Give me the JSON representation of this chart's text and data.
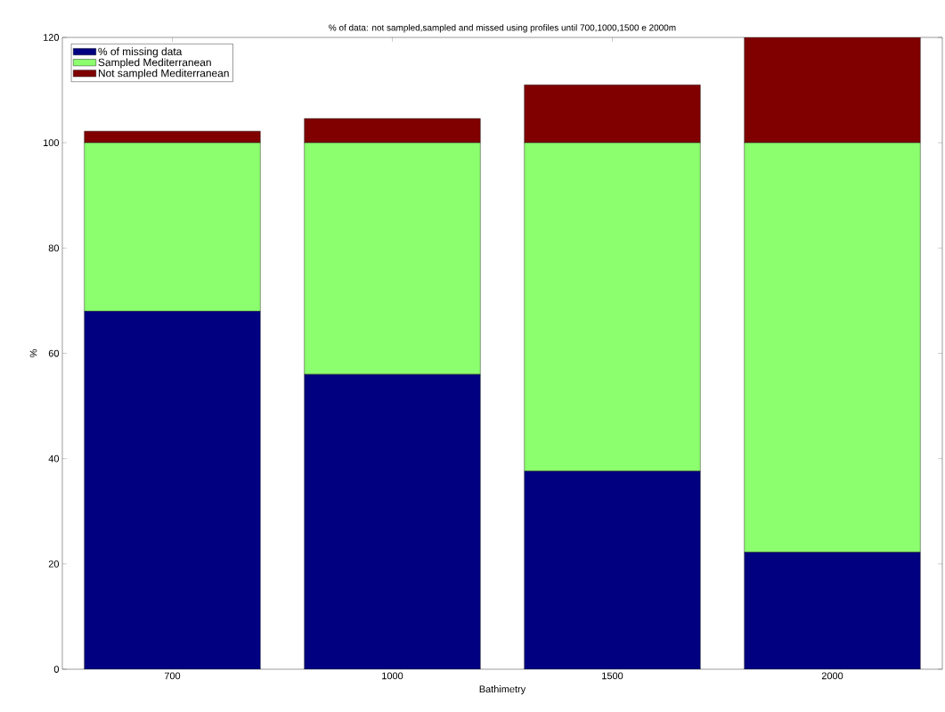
{
  "chart_data": {
    "type": "bar",
    "stacked": true,
    "title": "% of data: not sampled,sampled and missed using profiles until 700,1000,1500 e 2000m",
    "xlabel": "Bathimetry",
    "ylabel": "%",
    "categories": [
      "700",
      "1000",
      "1500",
      "2000"
    ],
    "series": [
      {
        "name": "% of missing data",
        "color": "#000080",
        "values": [
          68,
          56,
          37.6,
          22.2
        ]
      },
      {
        "name": "Sampled Mediterranean",
        "color": "#8cff6e",
        "values": [
          32,
          44,
          62.4,
          77.8
        ]
      },
      {
        "name": "Not sampled Mediterranean",
        "color": "#800000",
        "values": [
          2.2,
          4.6,
          11,
          20
        ]
      }
    ],
    "ylim": [
      0,
      120
    ],
    "yticks": [
      0,
      20,
      40,
      60,
      80,
      100,
      120
    ],
    "legend": "top left",
    "grid": false
  }
}
